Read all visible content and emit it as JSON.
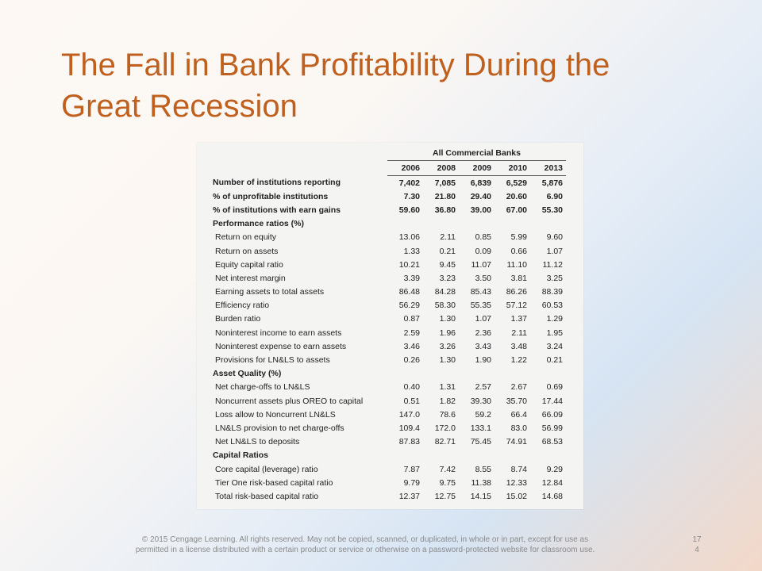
{
  "slide": {
    "title_line1": "The Fall in Bank Profitability During the",
    "title_line2": "Great Recession",
    "footer_line1": "© 2015 Cengage Learning. All rights reserved. May not be copied, scanned, or duplicated, in whole or in part, except for use as",
    "footer_line2": "permitted in a license distributed with a certain product or service or otherwise on a password-protected website for classroom use.",
    "page_num_line1": "17",
    "page_num_line2": "4"
  },
  "table": {
    "group_header": "All Commercial Banks",
    "years": [
      "2006",
      "2008",
      "2009",
      "2010",
      "2013"
    ],
    "rows": [
      {
        "label": "Number of institutions reporting",
        "type": "bold",
        "values": [
          "7,402",
          "7,085",
          "6,839",
          "6,529",
          "5,876"
        ]
      },
      {
        "label": "% of unprofitable institutions",
        "type": "bold",
        "values": [
          "7.30",
          "21.80",
          "29.40",
          "20.60",
          "6.90"
        ]
      },
      {
        "label": "% of institutions with earn gains",
        "type": "bold",
        "values": [
          "59.60",
          "36.80",
          "39.00",
          "67.00",
          "55.30"
        ]
      },
      {
        "label": "Performance ratios (%)",
        "type": "section",
        "values": []
      },
      {
        "label": "Return on equity",
        "type": "item",
        "values": [
          "13.06",
          "2.11",
          "0.85",
          "5.99",
          "9.60"
        ]
      },
      {
        "label": "Return on assets",
        "type": "item",
        "values": [
          "1.33",
          "0.21",
          "0.09",
          "0.66",
          "1.07"
        ]
      },
      {
        "label": "Equity capital ratio",
        "type": "item",
        "values": [
          "10.21",
          "9.45",
          "11.07",
          "11.10",
          "11.12"
        ]
      },
      {
        "label": "Net interest margin",
        "type": "item",
        "values": [
          "3.39",
          "3.23",
          "3.50",
          "3.81",
          "3.25"
        ]
      },
      {
        "label": "Earning assets to total assets",
        "type": "item",
        "values": [
          "86.48",
          "84.28",
          "85.43",
          "86.26",
          "88.39"
        ]
      },
      {
        "label": "Efficiency ratio",
        "type": "item",
        "values": [
          "56.29",
          "58.30",
          "55.35",
          "57.12",
          "60.53"
        ]
      },
      {
        "label": "Burden ratio",
        "type": "item",
        "values": [
          "0.87",
          "1.30",
          "1.07",
          "1.37",
          "1.29"
        ]
      },
      {
        "label": "Noninterest income to earn assets",
        "type": "item",
        "values": [
          "2.59",
          "1.96",
          "2.36",
          "2.11",
          "1.95"
        ]
      },
      {
        "label": "Noninterest expense to earn assets",
        "type": "item",
        "values": [
          "3.46",
          "3.26",
          "3.43",
          "3.48",
          "3.24"
        ]
      },
      {
        "label": "Provisions for LN&LS to assets",
        "type": "item",
        "values": [
          "0.26",
          "1.30",
          "1.90",
          "1.22",
          "0.21"
        ]
      },
      {
        "label": "Asset Quality (%)",
        "type": "section",
        "values": []
      },
      {
        "label": "Net charge-offs to LN&LS",
        "type": "item",
        "values": [
          "0.40",
          "1.31",
          "2.57",
          "2.67",
          "0.69"
        ]
      },
      {
        "label": "Noncurrent assets plus OREO to capital",
        "type": "item",
        "values": [
          "0.51",
          "1.82",
          "39.30",
          "35.70",
          "17.44"
        ]
      },
      {
        "label": "Loss allow to Noncurrent LN&LS",
        "type": "item",
        "values": [
          "147.0",
          "78.6",
          "59.2",
          "66.4",
          "66.09"
        ]
      },
      {
        "label": "LN&LS provision to net charge-offs",
        "type": "item",
        "values": [
          "109.4",
          "172.0",
          "133.1",
          "83.0",
          "56.99"
        ]
      },
      {
        "label": "Net LN&LS to deposits",
        "type": "item",
        "values": [
          "87.83",
          "82.71",
          "75.45",
          "74.91",
          "68.53"
        ]
      },
      {
        "label": "Capital Ratios",
        "type": "section",
        "values": []
      },
      {
        "label": "Core capital (leverage) ratio",
        "type": "item",
        "values": [
          "7.87",
          "7.42",
          "8.55",
          "8.74",
          "9.29"
        ]
      },
      {
        "label": "Tier One risk-based capital ratio",
        "type": "item",
        "values": [
          "9.79",
          "9.75",
          "11.38",
          "12.33",
          "12.84"
        ]
      },
      {
        "label": "Total risk-based capital ratio",
        "type": "item",
        "values": [
          "12.37",
          "12.75",
          "14.15",
          "15.02",
          "14.68"
        ]
      }
    ]
  }
}
